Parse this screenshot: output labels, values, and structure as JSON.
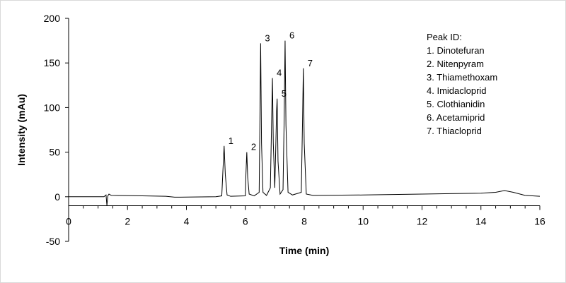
{
  "chart_data": {
    "type": "line",
    "title": "",
    "xlabel": "Time (min)",
    "ylabel": "Intensity (mAu)",
    "xlim": [
      0,
      16
    ],
    "ylim": [
      -50,
      200
    ],
    "xticks": [
      0,
      2,
      4,
      6,
      8,
      10,
      12,
      14,
      16
    ],
    "yticks": [
      -50,
      0,
      50,
      100,
      150,
      200
    ],
    "grid": false,
    "legend_placement": "top-right",
    "legend": {
      "title": "Peak ID:",
      "items": [
        "1. Dinotefuran",
        "2. Nitenpyram",
        "3. Thiamethoxam",
        "4. Imidacloprid",
        "5. Clothianidin",
        "6. Acetamiprid",
        "7. Thiacloprid"
      ]
    },
    "peaks": [
      {
        "label": "1",
        "time": 5.28,
        "height": 57
      },
      {
        "label": "2",
        "time": 6.05,
        "height": 50
      },
      {
        "label": "3",
        "time": 6.52,
        "height": 172
      },
      {
        "label": "4",
        "time": 6.92,
        "height": 133
      },
      {
        "label": "5",
        "time": 7.08,
        "height": 110
      },
      {
        "label": "6",
        "time": 7.35,
        "height": 175
      },
      {
        "label": "7",
        "time": 7.97,
        "height": 144
      }
    ],
    "series": [
      {
        "x": [
          0,
          1.2,
          1.27,
          1.3,
          1.33,
          1.37,
          1.45,
          2.5,
          3.3,
          3.6,
          5.0,
          5.2,
          5.24,
          5.28,
          5.32,
          5.38,
          5.5,
          6.0,
          6.02,
          6.05,
          6.08,
          6.13,
          6.3,
          6.47,
          6.5,
          6.52,
          6.55,
          6.6,
          6.72,
          6.85,
          6.89,
          6.92,
          6.95,
          7.0,
          7.03,
          7.06,
          7.08,
          7.11,
          7.18,
          7.28,
          7.32,
          7.35,
          7.38,
          7.45,
          7.6,
          7.9,
          7.94,
          7.97,
          8.0,
          8.07,
          8.3,
          10,
          12,
          14,
          14.5,
          14.8,
          15.1,
          15.5,
          16
        ],
        "y": [
          0,
          0,
          2,
          -10,
          1,
          3,
          1.5,
          1,
          0.5,
          -0.5,
          0,
          1,
          30,
          57,
          25,
          2,
          0.5,
          1,
          25,
          50,
          22,
          3,
          1,
          5,
          100,
          172,
          60,
          5,
          1.5,
          10,
          80,
          133,
          60,
          10,
          50,
          95,
          110,
          40,
          3,
          8,
          90,
          175,
          80,
          5,
          2,
          5,
          80,
          144,
          60,
          3,
          1.5,
          2,
          3,
          4,
          5,
          7,
          5,
          1.5,
          0.5
        ]
      }
    ]
  }
}
